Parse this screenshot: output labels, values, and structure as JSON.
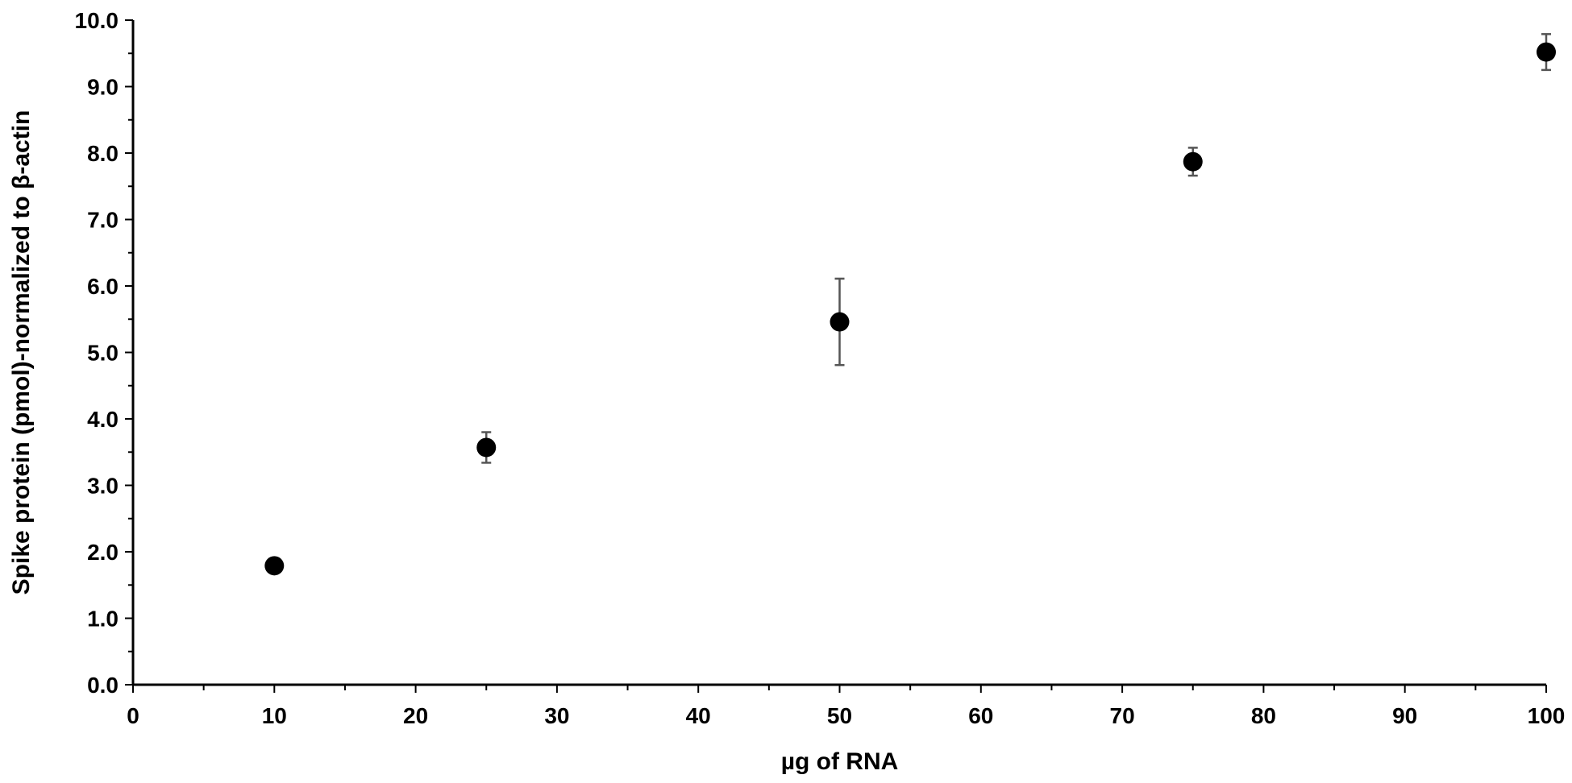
{
  "chart_data": {
    "type": "scatter",
    "title": "",
    "xlabel": "µg of RNA",
    "ylabel": "Spike protein (pmol)-normalized to β-actin",
    "xlim": [
      0,
      100
    ],
    "ylim": [
      0,
      10
    ],
    "x_ticks": [
      0,
      10,
      20,
      30,
      40,
      50,
      60,
      70,
      80,
      90,
      100
    ],
    "x_tick_labels": [
      "0",
      "10",
      "20",
      "30",
      "40",
      "50",
      "60",
      "70",
      "80",
      "90",
      "100"
    ],
    "y_ticks": [
      0,
      1,
      2,
      3,
      4,
      5,
      6,
      7,
      8,
      9,
      10
    ],
    "y_tick_labels": [
      "0.0",
      "1.0",
      "2.0",
      "3.0",
      "4.0",
      "5.0",
      "6.0",
      "7.0",
      "8.0",
      "9.0",
      "10.0"
    ],
    "grid": false,
    "legend": "none",
    "marker_color": "#000000",
    "errorbar_color": "#555555",
    "points": [
      {
        "x": 10,
        "y": 1.79,
        "err": 0.05
      },
      {
        "x": 25,
        "y": 3.57,
        "err": 0.23
      },
      {
        "x": 50,
        "y": 5.46,
        "err": 0.65
      },
      {
        "x": 75,
        "y": 7.87,
        "err": 0.21
      },
      {
        "x": 100,
        "y": 9.52,
        "err": 0.27
      }
    ]
  }
}
